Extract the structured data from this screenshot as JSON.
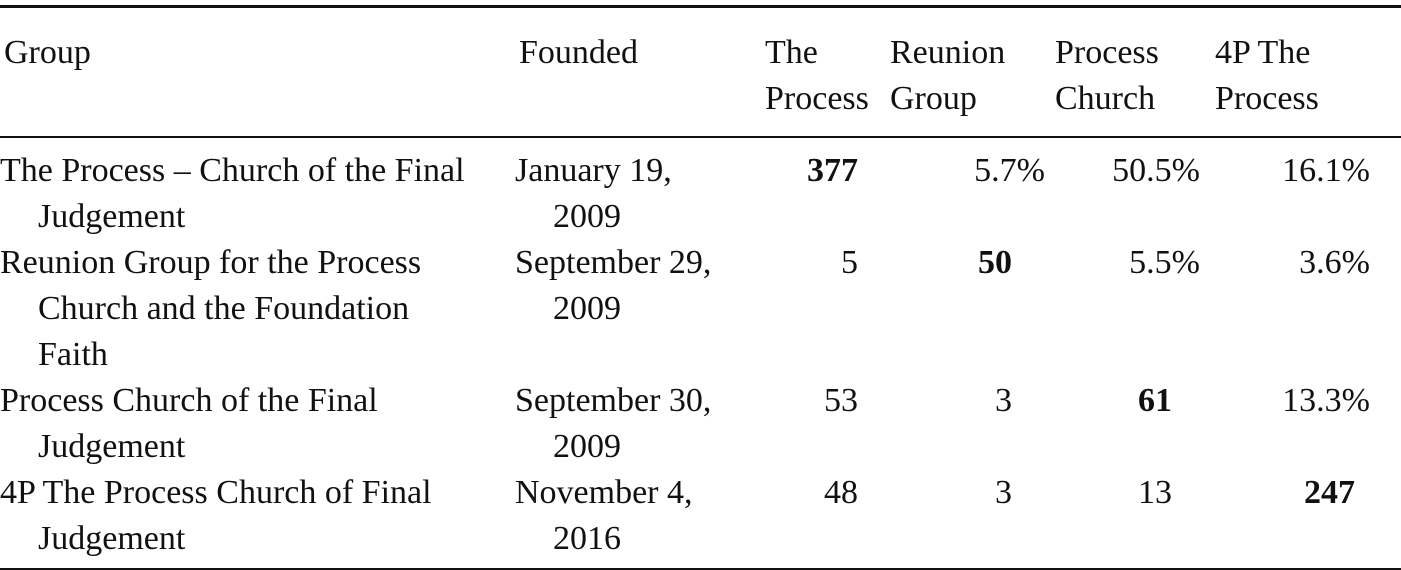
{
  "table": {
    "header": [
      "Group",
      "Founded",
      "The Process",
      "Reunion Group",
      "Process Church",
      "4P The Process"
    ],
    "rows": [
      [
        "The Process – Church of the Final Judgement",
        "January 19, 2009",
        "377",
        "5.7%",
        "50.5%",
        "16.1%"
      ],
      [
        "Reunion Group for the Process Church and the Foundation Faith",
        "September 29, 2009",
        "5",
        "50",
        "5.5%",
        "3.6%"
      ],
      [
        "Process Church of the Final Judgement",
        "September 30, 2009",
        "53",
        "3",
        "61",
        "13.3%"
      ],
      [
        "4P The Process Church of Final Judgement",
        "November 4, 2016",
        "48",
        "3",
        "13",
        "247"
      ]
    ]
  }
}
